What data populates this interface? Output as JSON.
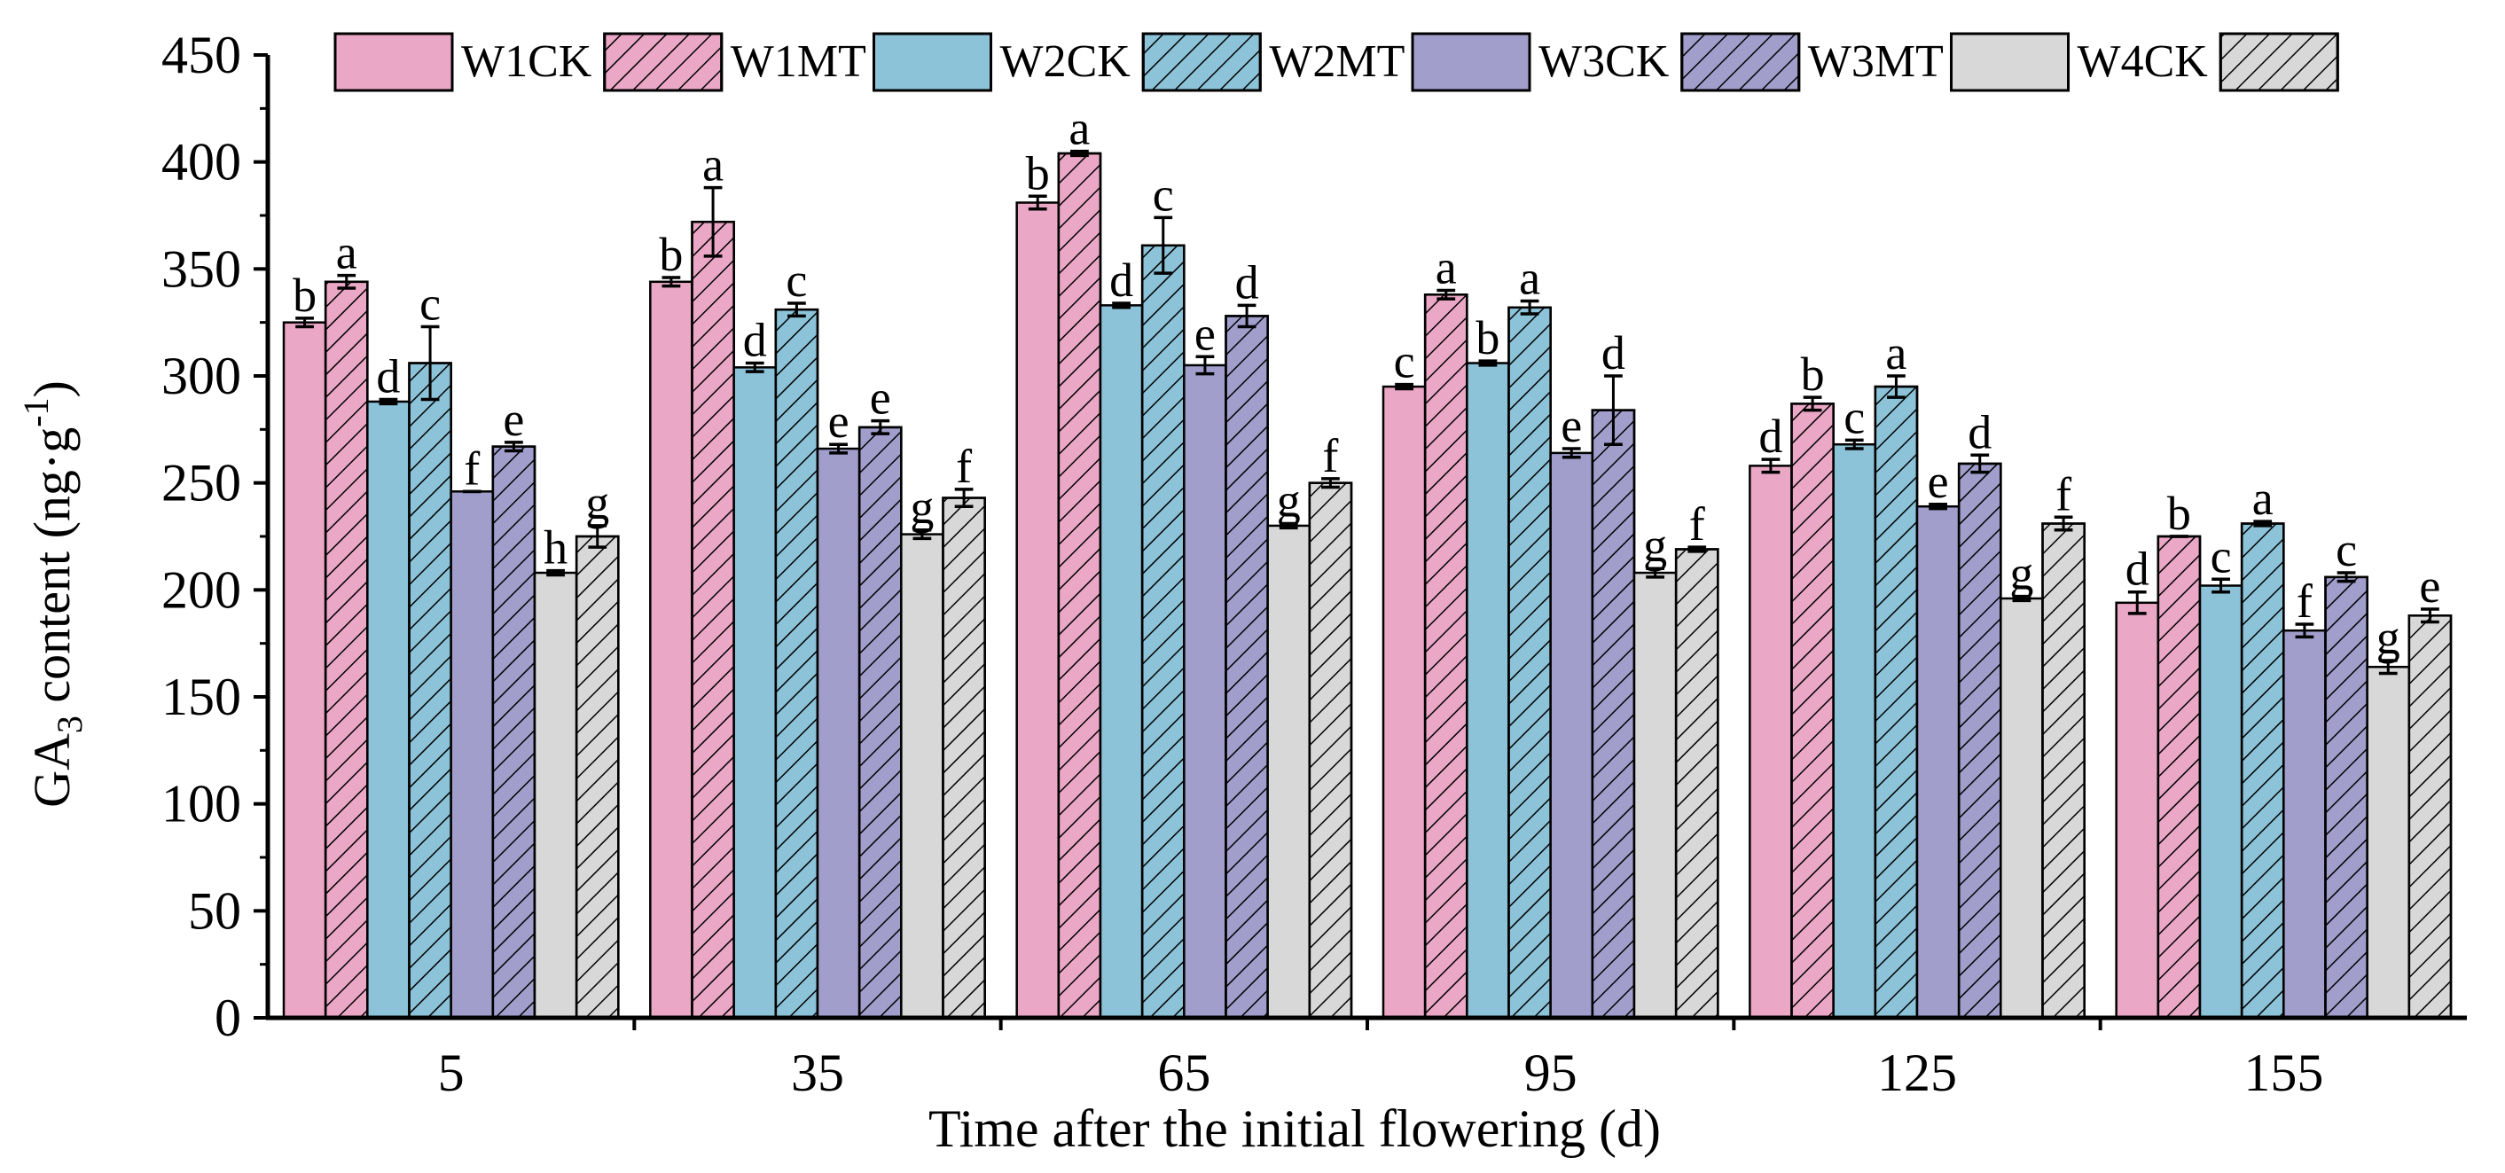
{
  "chart_data": {
    "type": "bar",
    "xlabel": "Time after the initial flowering (d)",
    "ylabel_main": "GA",
    "ylabel_sub": "3",
    "ylabel_rest": " content (ng·g",
    "ylabel_sup": "-1",
    "ylabel_close": ")",
    "ylim": [
      0,
      450
    ],
    "yticks": [
      "0",
      "50",
      "100",
      "150",
      "200",
      "250",
      "300",
      "350",
      "400",
      "450"
    ],
    "categories": [
      "5",
      "35",
      "65",
      "95",
      "125",
      "155"
    ],
    "legend_position": "top",
    "series": [
      {
        "name": "W1CK",
        "color": "#EBA8C6",
        "hatch": false,
        "values": [
          325,
          344,
          381,
          295,
          258,
          194
        ],
        "errors": [
          2,
          2,
          3,
          1,
          3,
          5
        ],
        "letters": [
          "b",
          "b",
          "b",
          "c",
          "d",
          "d"
        ]
      },
      {
        "name": "W1MT",
        "color": "#EBA8C6",
        "hatch": true,
        "values": [
          344,
          372,
          404,
          338,
          287,
          225
        ],
        "errors": [
          3,
          16,
          1,
          2,
          3,
          0
        ],
        "letters": [
          "a",
          "a",
          "a",
          "a",
          "b",
          "b"
        ]
      },
      {
        "name": "W2CK",
        "color": "#8CC3D8",
        "hatch": false,
        "values": [
          288,
          304,
          333,
          306,
          268,
          202
        ],
        "errors": [
          1,
          2,
          1,
          1,
          2,
          3
        ],
        "letters": [
          "d",
          "d",
          "d",
          "b",
          "c",
          "c"
        ]
      },
      {
        "name": "W2MT",
        "color": "#8CC3D8",
        "hatch": true,
        "values": [
          306,
          331,
          361,
          332,
          295,
          231
        ],
        "errors": [
          17,
          3,
          13,
          3,
          5,
          1
        ],
        "letters": [
          "c",
          "c",
          "c",
          "a",
          "a",
          "a"
        ]
      },
      {
        "name": "W3CK",
        "color": "#A19ECC",
        "hatch": false,
        "values": [
          246,
          266,
          305,
          264,
          239,
          181
        ],
        "errors": [
          0,
          2,
          4,
          2,
          1,
          3
        ],
        "letters": [
          "f",
          "e",
          "e",
          "e",
          "e",
          "f"
        ]
      },
      {
        "name": "W3MT",
        "color": "#A19ECC",
        "hatch": true,
        "values": [
          267,
          276,
          328,
          284,
          259,
          206
        ],
        "errors": [
          2,
          3,
          5,
          16,
          4,
          2
        ],
        "letters": [
          "e",
          "e",
          "d",
          "d",
          "d",
          "c"
        ]
      },
      {
        "name": "W4CK",
        "color": "#D8D8D8",
        "hatch": false,
        "values": [
          208,
          226,
          230,
          208,
          196,
          164
        ],
        "errors": [
          1,
          2,
          1,
          2,
          1,
          3
        ],
        "letters": [
          "h",
          "g",
          "g",
          "g",
          "g",
          "g"
        ]
      },
      {
        "name": "",
        "color": "#D8D8D8",
        "hatch": true,
        "values": [
          225,
          243,
          250,
          219,
          231,
          188
        ],
        "errors": [
          5,
          4,
          2,
          1,
          3,
          3
        ],
        "letters": [
          "g",
          "f",
          "f",
          "f",
          "f",
          "e"
        ]
      }
    ]
  }
}
